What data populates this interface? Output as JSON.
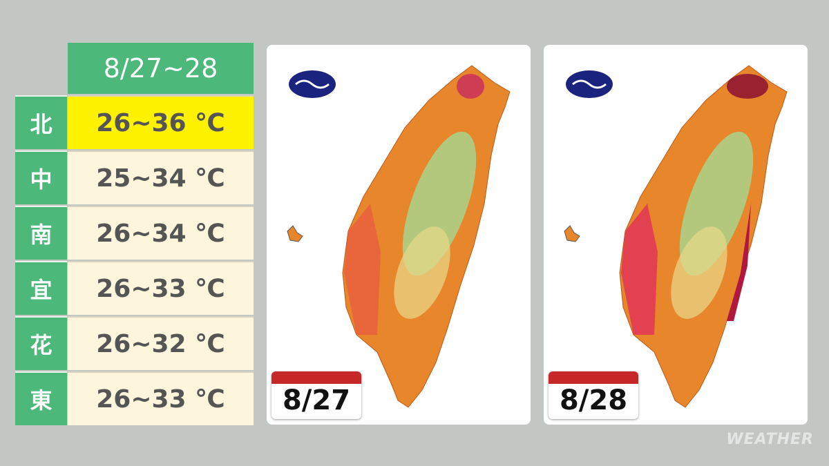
{
  "table": {
    "header": "8/27~28",
    "rows": [
      [
        "北",
        "26~36 ℃"
      ],
      [
        "中",
        "25~34 ℃"
      ],
      [
        "南",
        "26~34 ℃"
      ],
      [
        "宜",
        "26~33 ℃"
      ],
      [
        "花",
        "26~32 ℃"
      ],
      [
        "東",
        "26~33 ℃"
      ]
    ]
  },
  "maps": [
    {
      "date": "8/27"
    },
    {
      "date": "8/28"
    }
  ],
  "watermark": "WEATHER"
}
